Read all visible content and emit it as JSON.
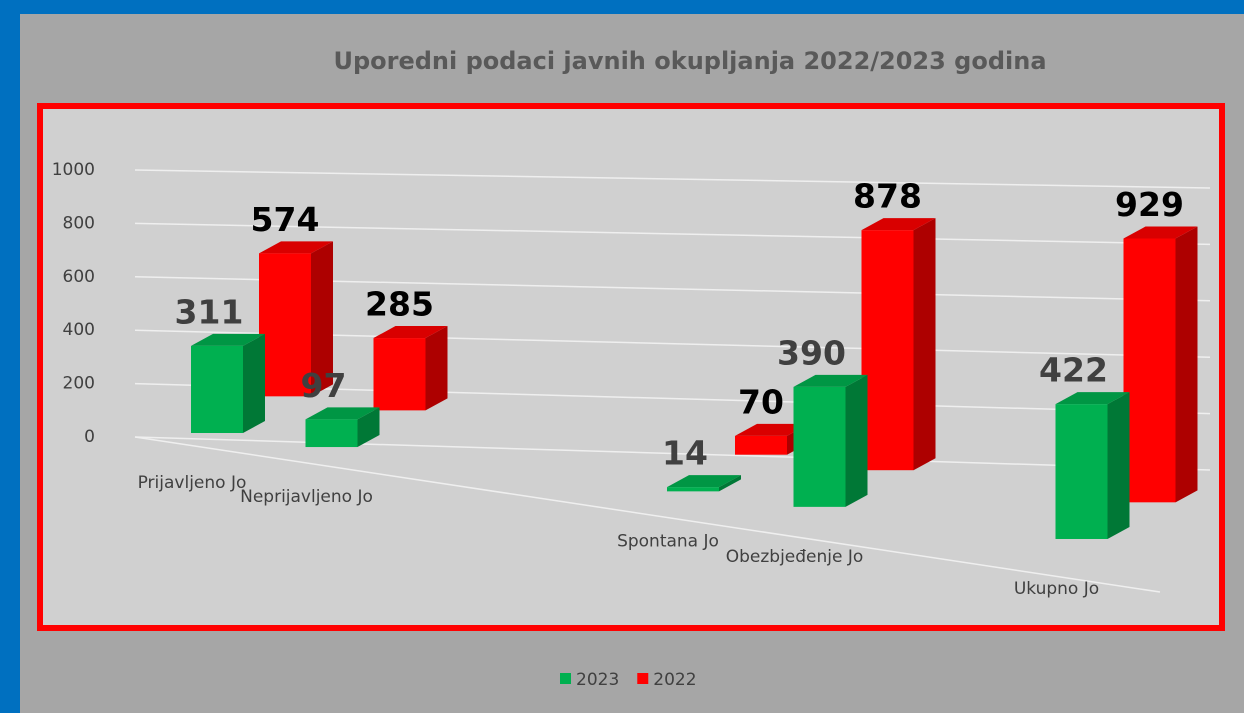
{
  "chart_data": {
    "type": "bar3d",
    "title": "Uporedni podaci javnih okupljanja 2022/2023 godina",
    "categories": [
      "Prijavljeno Jo",
      "Neprijavljeno Jo",
      null,
      null,
      "Spontana Jo",
      "Obezbjeđenje Jo",
      null,
      "Ukupno Jo"
    ],
    "series": [
      {
        "name": "2023",
        "color": "#00b050",
        "values": [
          311,
          97,
          null,
          null,
          14,
          390,
          null,
          422
        ]
      },
      {
        "name": "2022",
        "color": "#ff0000",
        "values": [
          574,
          285,
          null,
          null,
          70,
          878,
          null,
          929
        ]
      }
    ],
    "ylim": [
      0,
      1000
    ],
    "yticks": [
      0,
      200,
      400,
      600,
      800,
      1000
    ],
    "grid": true,
    "legend": "bottom"
  }
}
